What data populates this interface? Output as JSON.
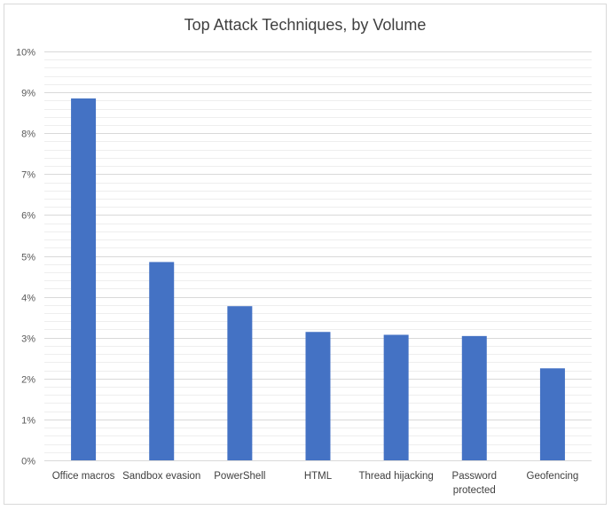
{
  "chart_data": {
    "type": "bar",
    "title": "Top Attack Techniques, by Volume",
    "xlabel": "",
    "ylabel": "",
    "categories": [
      [
        "Office macros"
      ],
      [
        "Sandbox evasion"
      ],
      [
        "PowerShell"
      ],
      [
        "HTML"
      ],
      [
        "Thread hijacking"
      ],
      [
        "Password",
        "protected"
      ],
      [
        "Geofencing"
      ]
    ],
    "values": [
      8.85,
      4.85,
      3.77,
      3.14,
      3.07,
      3.04,
      2.25
    ],
    "ylim": [
      0,
      10
    ],
    "y_major_ticks": [
      0,
      1,
      2,
      3,
      4,
      5,
      6,
      7,
      8,
      9,
      10
    ],
    "y_tick_labels": [
      "0%",
      "1%",
      "2%",
      "3%",
      "4%",
      "5%",
      "6%",
      "7%",
      "8%",
      "9%",
      "10%"
    ],
    "minor_gridlines": true,
    "grid": true,
    "legend": "none",
    "bar_color": "#4472c4",
    "major_grid_color": "#d9d9d9",
    "minor_grid_color": "#eeeeee"
  }
}
